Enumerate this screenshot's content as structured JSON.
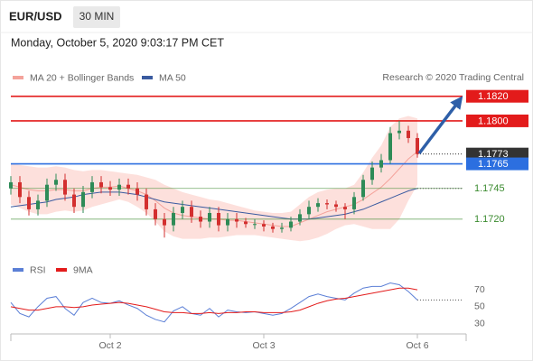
{
  "chart_data": {
    "type": "candlestick",
    "title": "EUR/USD",
    "subtitle": "30 MIN",
    "timestamp": "Monday, October 5, 2020 9:03:17 PM CET",
    "credit": "Research © 2020 Trading Central",
    "categories": [
      null,
      null,
      null,
      null,
      null,
      null,
      null,
      null,
      null,
      null,
      null,
      "Oct 2",
      null,
      null,
      null,
      null,
      null,
      null,
      null,
      null,
      null,
      null,
      null,
      null,
      null,
      null,
      null,
      null,
      "Oct 3",
      null,
      null,
      null,
      null,
      null,
      null,
      null,
      null,
      null,
      null,
      null,
      null,
      null,
      null,
      null,
      null,
      "Oct 6"
    ],
    "open": [
      1.1745,
      1.175,
      1.1738,
      1.1728,
      1.1735,
      1.1748,
      1.1752,
      1.174,
      1.173,
      1.1742,
      1.175,
      1.1746,
      1.1744,
      1.1748,
      1.1745,
      1.174,
      1.1728,
      1.172,
      1.1715,
      1.1725,
      1.173,
      1.1722,
      1.1718,
      1.1725,
      1.1715,
      1.172,
      1.1718,
      1.1716,
      1.1716,
      1.1714,
      1.1712,
      1.1713,
      1.1718,
      1.1724,
      1.173,
      1.1733,
      1.1732,
      1.173,
      1.1728,
      1.1738,
      1.1752,
      1.1762,
      1.1768,
      1.179,
      1.1792,
      1.1786
    ],
    "high": [
      1.1755,
      1.1755,
      1.1743,
      1.174,
      1.1753,
      1.1757,
      1.1757,
      1.1745,
      1.1747,
      1.1755,
      1.1755,
      1.1751,
      1.1753,
      1.1753,
      1.175,
      1.1745,
      1.1733,
      1.1725,
      1.173,
      1.1735,
      1.1735,
      1.1727,
      1.173,
      1.173,
      1.1725,
      1.1725,
      1.1721,
      1.172,
      1.1719,
      1.1717,
      1.1717,
      1.1722,
      1.1728,
      1.1735,
      1.1737,
      1.1736,
      1.1735,
      1.1733,
      1.1742,
      1.1756,
      1.1767,
      1.1773,
      1.1795,
      1.18,
      1.1796,
      1.179
    ],
    "low": [
      1.174,
      1.1733,
      1.1723,
      1.1723,
      1.173,
      1.1743,
      1.1735,
      1.1725,
      1.1725,
      1.1737,
      1.1741,
      1.1739,
      1.1739,
      1.174,
      1.1735,
      1.1723,
      1.1715,
      1.1705,
      1.171,
      1.172,
      1.1717,
      1.1713,
      1.1713,
      1.171,
      1.171,
      1.1713,
      1.1713,
      1.1712,
      1.171,
      1.1709,
      1.1709,
      1.171,
      1.1715,
      1.172,
      1.1726,
      1.1728,
      1.1726,
      1.172,
      1.1724,
      1.1735,
      1.1748,
      1.1758,
      1.1765,
      1.1785,
      1.1782,
      1.177
    ],
    "close": [
      1.175,
      1.1738,
      1.1728,
      1.1735,
      1.1748,
      1.1752,
      1.174,
      1.173,
      1.1742,
      1.175,
      1.1746,
      1.1744,
      1.1748,
      1.1745,
      1.174,
      1.1728,
      1.172,
      1.1715,
      1.1725,
      1.173,
      1.1722,
      1.1718,
      1.1725,
      1.1715,
      1.172,
      1.1718,
      1.1716,
      1.1716,
      1.1714,
      1.1712,
      1.1713,
      1.1718,
      1.1724,
      1.173,
      1.1733,
      1.1732,
      1.173,
      1.1728,
      1.1738,
      1.1752,
      1.1762,
      1.1768,
      1.179,
      1.1792,
      1.1786,
      1.1773
    ],
    "up_color": "#2e8b57",
    "down_color": "#d32f2f",
    "ylim": [
      1.1689,
      1.1869
    ],
    "overlays": [
      {
        "name": "MA 20 + Bollinger Bands",
        "color": "#f4a39b",
        "band_color": "#fde0dc",
        "values": [
          1.1748,
          1.1746,
          1.1744,
          1.1743,
          1.1743,
          1.1744,
          1.1744,
          1.1743,
          1.1743,
          1.1745,
          1.1746,
          1.1746,
          1.1747,
          1.1745,
          1.1743,
          1.174,
          1.1735,
          1.1729,
          1.1725,
          1.1723,
          1.1722,
          1.1721,
          1.172,
          1.172,
          1.1719,
          1.1719,
          1.1718,
          1.1717,
          1.1716,
          1.1715,
          1.1714,
          1.1714,
          1.1717,
          1.172,
          1.1723,
          1.1726,
          1.1728,
          1.173,
          1.1732,
          1.1736,
          1.1741,
          1.1746,
          1.1753,
          1.1761,
          1.1769,
          1.1775
        ],
        "upper": [
          1.1765,
          1.1764,
          1.1763,
          1.1762,
          1.1762,
          1.1763,
          1.1762,
          1.176,
          1.1759,
          1.176,
          1.176,
          1.1759,
          1.1758,
          1.1757,
          1.1756,
          1.1754,
          1.1752,
          1.1748,
          1.1745,
          1.1742,
          1.174,
          1.1738,
          1.1736,
          1.1735,
          1.1733,
          1.1731,
          1.1729,
          1.1727,
          1.1726,
          1.1725,
          1.1725,
          1.1726,
          1.1732,
          1.1738,
          1.1742,
          1.1744,
          1.1745,
          1.1745,
          1.1748,
          1.1758,
          1.177,
          1.178,
          1.1795,
          1.1802,
          1.1804,
          1.1802
        ],
        "lower": [
          1.1732,
          1.1729,
          1.1726,
          1.1724,
          1.1724,
          1.1726,
          1.1727,
          1.1726,
          1.1727,
          1.173,
          1.1732,
          1.1734,
          1.1736,
          1.1734,
          1.173,
          1.1725,
          1.1718,
          1.171,
          1.1706,
          1.1704,
          1.1704,
          1.1704,
          1.1705,
          1.1705,
          1.1706,
          1.1707,
          1.1707,
          1.1707,
          1.1706,
          1.1705,
          1.1704,
          1.1703,
          1.1702,
          1.1703,
          1.1705,
          1.1708,
          1.1712,
          1.1715,
          1.1716,
          1.1714,
          1.1712,
          1.1712,
          1.1712,
          1.172,
          1.1735,
          1.1748
        ]
      },
      {
        "name": "MA 50",
        "color": "#3a5ba0",
        "values": [
          1.173,
          1.1731,
          1.1732,
          1.1733,
          1.1734,
          1.1736,
          1.1737,
          1.1738,
          1.174,
          1.1741,
          1.1742,
          1.1742,
          1.1742,
          1.1741,
          1.174,
          1.1738,
          1.1736,
          1.1734,
          1.1733,
          1.1732,
          1.1731,
          1.173,
          1.1729,
          1.1728,
          1.1727,
          1.1726,
          1.1725,
          1.1724,
          1.1723,
          1.1722,
          1.1721,
          1.172,
          1.172,
          1.172,
          1.1721,
          1.1722,
          1.1723,
          1.1724,
          1.1726,
          1.1728,
          1.1731,
          1.1734,
          1.1737,
          1.174,
          1.1743,
          1.1745
        ]
      }
    ],
    "levels": [
      {
        "value": 1.182,
        "label": "1.1820",
        "color": "#e31b1b",
        "kind": "box",
        "line": "solid"
      },
      {
        "value": 1.18,
        "label": "1.1800",
        "color": "#e31b1b",
        "kind": "box",
        "line": "solid"
      },
      {
        "value": 1.1773,
        "label": "1.1773",
        "color": "#333333",
        "kind": "box",
        "line": "dotted"
      },
      {
        "value": 1.1765,
        "label": "1.1765",
        "color": "#2c6fe0",
        "kind": "box",
        "line": "solid"
      },
      {
        "value": 1.1745,
        "label": "1.1745",
        "color": "#3a8a2e",
        "kind": "text",
        "line": "solid"
      },
      {
        "value": 1.172,
        "label": "1.1720",
        "color": "#3a8a2e",
        "kind": "text",
        "line": "solid"
      }
    ],
    "rsi": {
      "ylim": [
        20,
        85
      ],
      "yticks": [
        70,
        50,
        30
      ],
      "series": [
        {
          "name": "RSI",
          "color": "#5b7fd6",
          "values": [
            55,
            42,
            38,
            50,
            60,
            62,
            48,
            40,
            55,
            60,
            55,
            54,
            57,
            52,
            48,
            40,
            35,
            32,
            45,
            50,
            42,
            40,
            48,
            38,
            46,
            44,
            43,
            44,
            42,
            40,
            42,
            48,
            55,
            62,
            65,
            62,
            60,
            58,
            66,
            72,
            74,
            74,
            78,
            76,
            68,
            58
          ]
        },
        {
          "name": "9MA",
          "color": "#e31b1b",
          "values": [
            50,
            48,
            46,
            46,
            48,
            50,
            50,
            49,
            50,
            52,
            53,
            54,
            55,
            54,
            52,
            50,
            47,
            44,
            43,
            43,
            42,
            42,
            43,
            42,
            43,
            43,
            44,
            44,
            43,
            43,
            43,
            44,
            46,
            50,
            54,
            57,
            59,
            60,
            62,
            64,
            66,
            68,
            70,
            72,
            72,
            70
          ]
        }
      ]
    }
  }
}
